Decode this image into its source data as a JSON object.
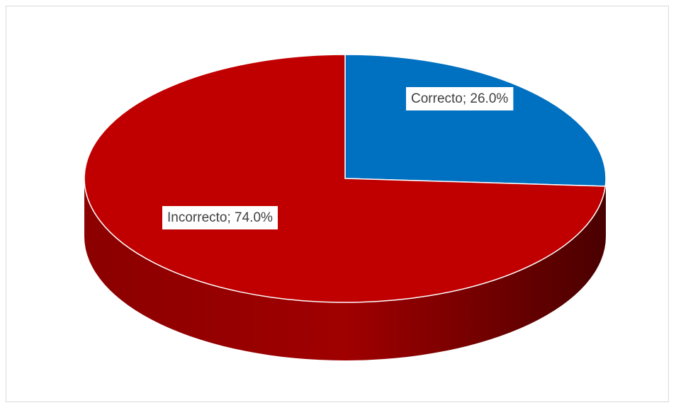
{
  "chart_data": {
    "type": "pie",
    "title": "",
    "three_d": true,
    "legend": "none",
    "slices": [
      {
        "label": "Correcto",
        "value": 26.0,
        "display": "Correcto; 26.0%",
        "color": "#0070C0"
      },
      {
        "label": "Incorrecto",
        "value": 74.0,
        "display": "Incorrecto; 74.0%",
        "color": "#C00000"
      }
    ],
    "side_colors": {
      "dark": "#4a0000",
      "mid": "#8b0000",
      "light": "#a00000"
    }
  }
}
